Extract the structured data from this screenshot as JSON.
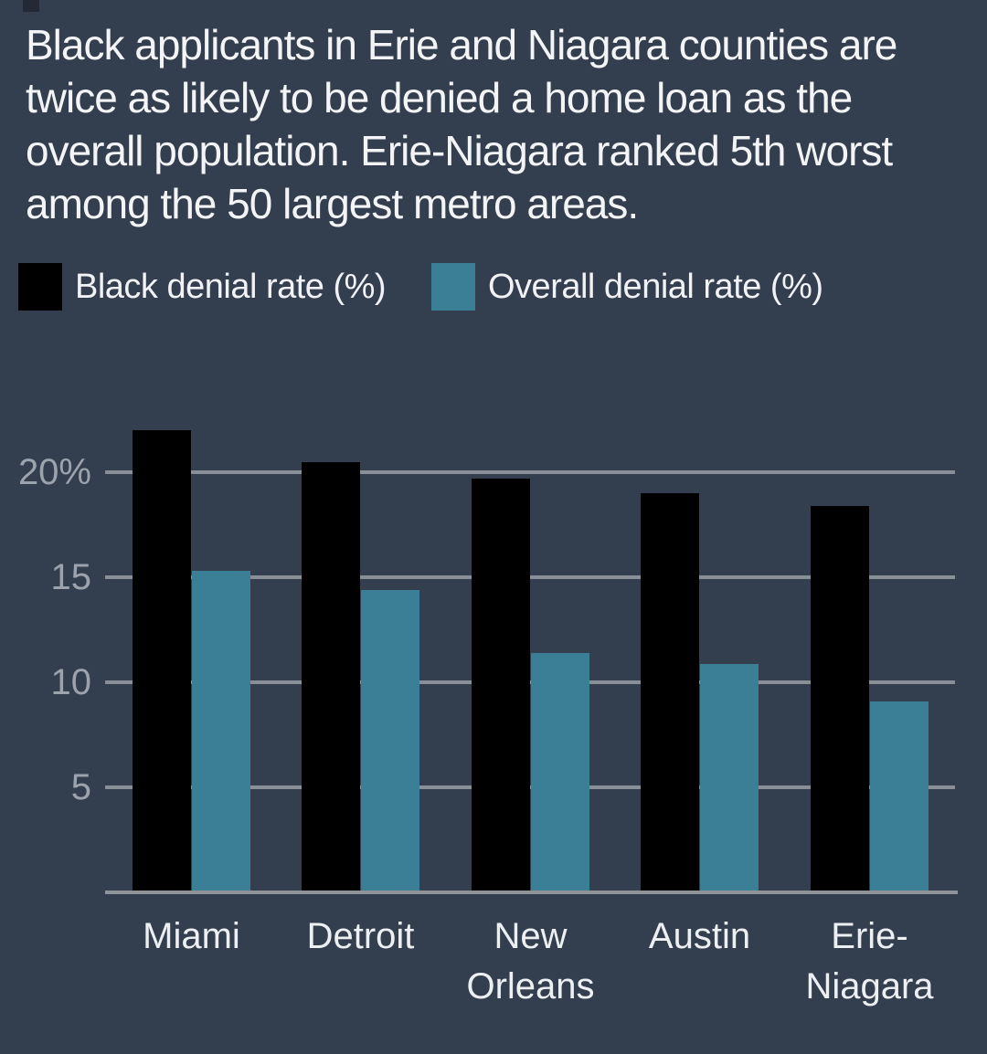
{
  "title_lines": [
    "Black applicants in Erie and Niagara counties are",
    "twice as likely to be denied a home loan as the",
    "overall population. Erie-Niagara ranked 5th worst",
    "among the 50 largest metro areas."
  ],
  "legend": {
    "black_label": "Black denial rate (%)",
    "overall_label": "Overall denial rate (%)"
  },
  "chart_data": {
    "type": "bar",
    "categories": [
      "Miami",
      "Detroit",
      "New Orleans",
      "Austin",
      "Erie-Niagara"
    ],
    "category_label_lines": [
      [
        "Miami"
      ],
      [
        "Detroit"
      ],
      [
        "New",
        "Orleans"
      ],
      [
        "Austin"
      ],
      [
        "Erie-",
        "Niagara"
      ]
    ],
    "series": [
      {
        "name": "Black denial rate (%)",
        "color": "#000000",
        "values": [
          21.9,
          20.4,
          19.6,
          18.9,
          18.3
        ]
      },
      {
        "name": "Overall denial rate (%)",
        "color": "#3A7F96",
        "values": [
          15.2,
          14.3,
          11.3,
          10.8,
          9.0
        ]
      }
    ],
    "y_ticks": [
      {
        "label": "20%",
        "value": 20
      },
      {
        "label": "15",
        "value": 15
      },
      {
        "label": "10",
        "value": 10
      },
      {
        "label": "5",
        "value": 5
      }
    ],
    "ylim": [
      0,
      25
    ],
    "grid": "horizontal",
    "legend_position": "top",
    "xlabel": "",
    "ylabel": ""
  },
  "colors": {
    "background": "#333E4F",
    "title_text": "#F2F4F6",
    "axis_text": "#9CA3AC",
    "category_text": "#EDF0F3",
    "gridline": "#898F96",
    "bar_black": "#000000",
    "bar_teal": "#3A7F96"
  }
}
